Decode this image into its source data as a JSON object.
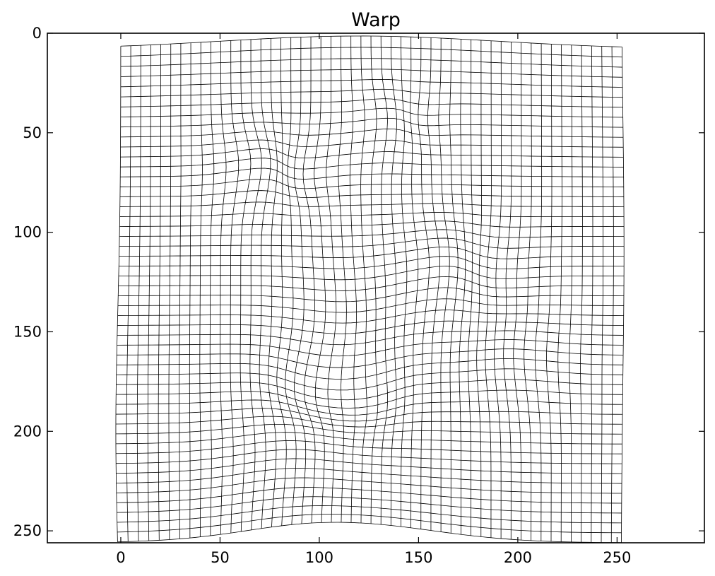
{
  "chart_data": {
    "type": "line",
    "title": "Warp",
    "xlabel": "",
    "ylabel": "",
    "xlim": [
      -37,
      294
    ],
    "ylim": [
      256,
      0
    ],
    "y_inverted": true,
    "x_ticks": [
      "0",
      "50",
      "100",
      "150",
      "200",
      "250"
    ],
    "y_ticks": [
      "0",
      "50",
      "100",
      "150",
      "200",
      "250"
    ],
    "grid": false,
    "line_color": "#000000",
    "series": [
      {
        "values": [
          {
            "x": 0,
            "y": 8
          },
          {
            "x": 75,
            "y": 0
          },
          {
            "x": 112,
            "y": 0
          },
          {
            "x": 170,
            "y": 0
          },
          {
            "x": 252,
            "y": 8
          },
          {
            "x": 253,
            "y": 150
          },
          {
            "x": 252,
            "y": 256
          },
          {
            "x": 170,
            "y": 250
          },
          {
            "x": 112,
            "y": 246
          },
          {
            "x": 50,
            "y": 251
          },
          {
            "x": 0,
            "y": 256
          },
          {
            "x": -2,
            "y": 150
          }
        ]
      }
    ],
    "warp_features": [
      {
        "x": 62,
        "y": 68
      },
      {
        "x": 78,
        "y": 75
      },
      {
        "x": 100,
        "y": 175
      },
      {
        "x": 118,
        "y": 180
      },
      {
        "x": 160,
        "y": 120
      },
      {
        "x": 182,
        "y": 118
      },
      {
        "x": 135,
        "y": 50
      },
      {
        "x": 112,
        "y": 246
      }
    ]
  }
}
